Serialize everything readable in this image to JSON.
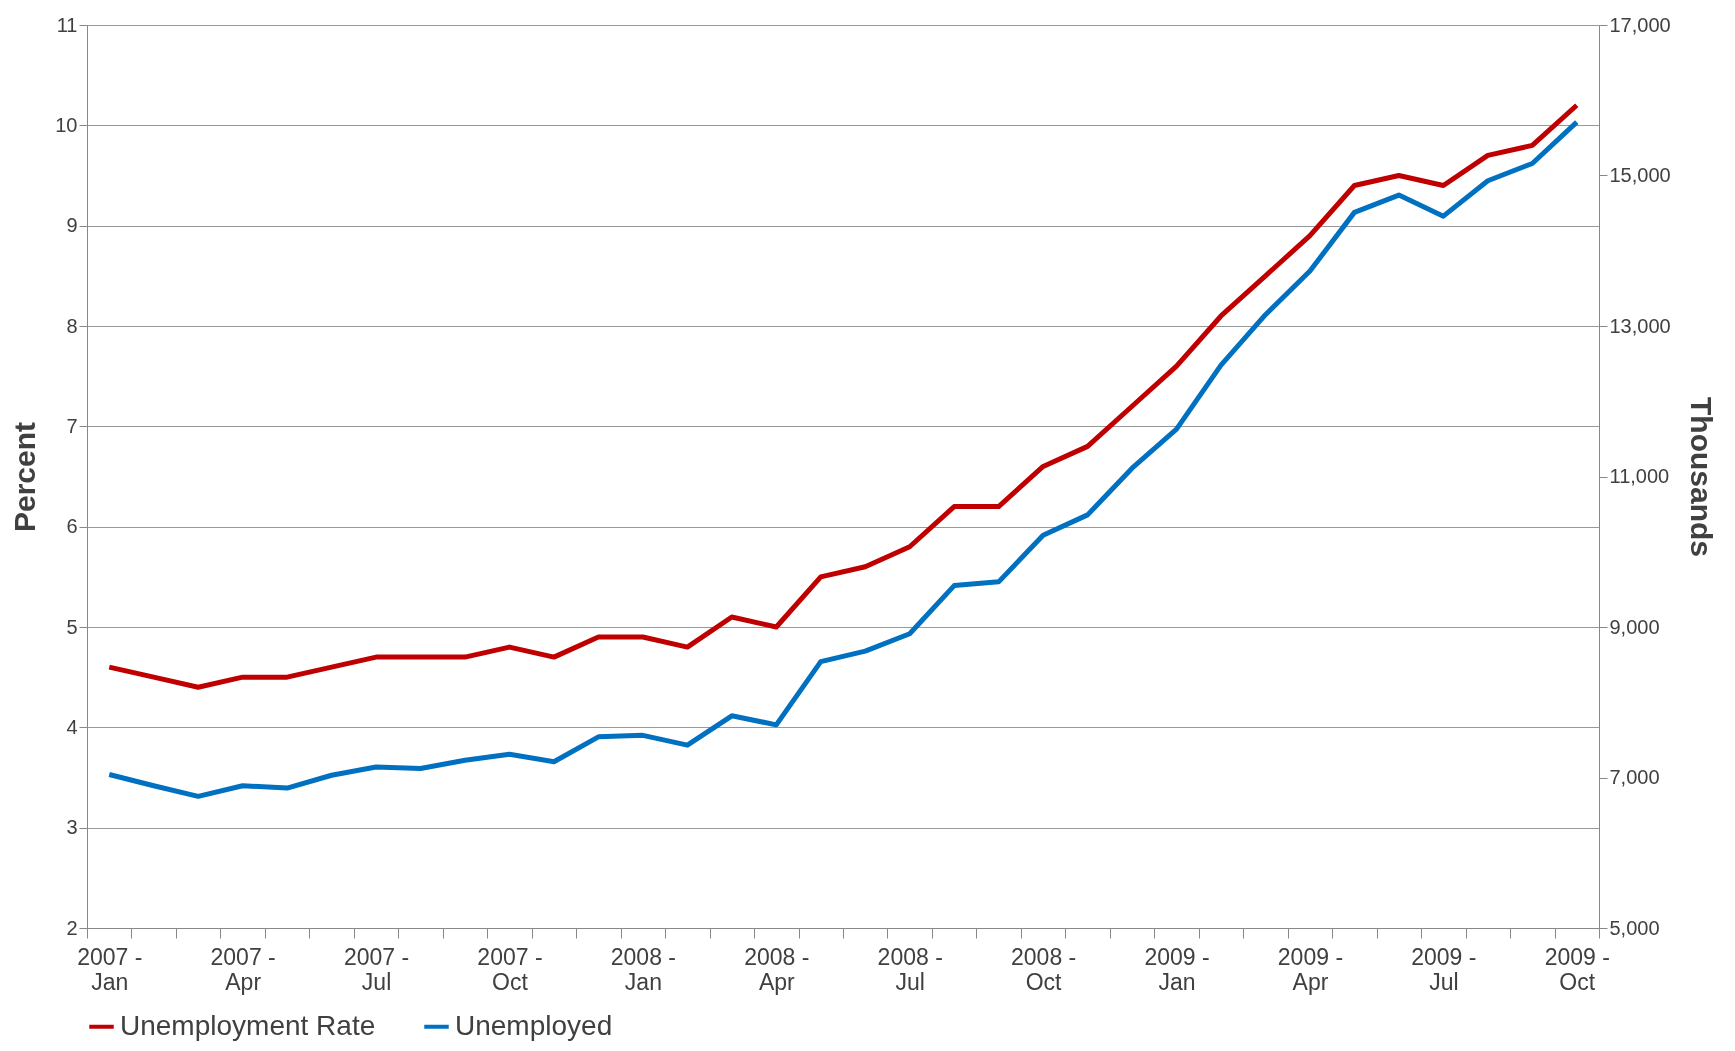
{
  "chart_data": {
    "type": "line",
    "ylabel": "Percent",
    "y2label": "Thousands",
    "categories": [
      "2007 - Jan",
      null,
      null,
      "2007 - Apr",
      null,
      null,
      "2007 - Jul",
      null,
      null,
      "2007 - Oct",
      null,
      null,
      "2008 - Jan",
      null,
      null,
      "2008 - Apr",
      null,
      null,
      "2008 - Jul",
      null,
      null,
      "2008 - Oct",
      null,
      null,
      "2009 - Jan",
      null,
      null,
      "2009 - Apr",
      null,
      null,
      "2009 - Jul",
      null,
      null,
      "2009 - Oct"
    ],
    "series": [
      {
        "name": "Unemployment Rate",
        "color": "#c00000",
        "values": [
          4.6,
          4.5,
          4.4,
          4.5,
          4.5,
          4.6,
          4.7,
          4.7,
          4.7,
          4.8,
          4.7,
          4.9,
          4.9,
          4.8,
          5.1,
          5.0,
          5.5,
          5.6,
          5.8,
          6.2,
          6.2,
          6.6,
          6.8,
          7.2,
          7.6,
          8.1,
          8.5,
          8.9,
          9.4,
          9.5,
          9.4,
          9.7,
          9.8,
          10.2
        ]
      },
      {
        "name": "Unemployed",
        "color": "#0070c0",
        "axis": "y2",
        "values": [
          7040,
          6890,
          6750,
          6890,
          6860,
          7030,
          7140,
          7120,
          7230,
          7310,
          7210,
          7540,
          7560,
          7430,
          7820,
          7700,
          8540,
          8680,
          8910,
          9550,
          9600,
          10220,
          10490,
          11110,
          11630,
          12480,
          13150,
          13730,
          14510,
          14740,
          14460,
          14930,
          15160,
          15710
        ]
      }
    ],
    "ylim": [
      2,
      11
    ],
    "yticks": [
      2,
      3,
      4,
      5,
      6,
      7,
      8,
      9,
      10,
      11
    ],
    "y2lim": [
      5000,
      17000
    ],
    "y2ticks": [
      {
        "value": 5000,
        "label": "5,000"
      },
      {
        "value": 7000,
        "label": "7,000"
      },
      {
        "value": 9000,
        "label": "9,000"
      },
      {
        "value": 11000,
        "label": "11,000"
      },
      {
        "value": 13000,
        "label": "13,000"
      },
      {
        "value": 15000,
        "label": "15,000"
      },
      {
        "value": 17000,
        "label": "17,000"
      }
    ],
    "grid": "y",
    "legend": "bottom",
    "marker": "none",
    "line_style": "solid"
  }
}
